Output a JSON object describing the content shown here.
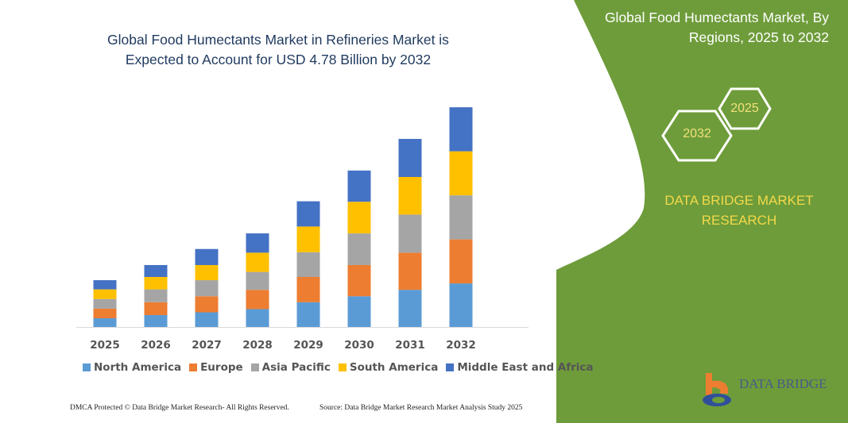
{
  "title": "Global Food Humectants Market in Refineries Market is Expected to Account for USD 4.78 Billion by 2032",
  "panel": {
    "title": "Global Food Humectants Market, By Regions, 2025 to 2032",
    "hex_start": "2025",
    "hex_end": "2032",
    "brand": "DATA BRIDGE MARKET RESEARCH",
    "logo_text": "DATA BRIDGE",
    "color": "#6e9c3a"
  },
  "footer": {
    "left": "DMCA Protected © Data Bridge Market Research-  All Rights Reserved.",
    "right": "Source: Data Bridge Market Research  Market Analysis Study 2025"
  },
  "chart_data": {
    "type": "bar",
    "stacked": true,
    "title": "Global Food Humectants Market in Refineries Market is Expected to Account for USD 4.78 Billion by 2032",
    "xlabel": "",
    "ylabel": "",
    "ylim": [
      0,
      5
    ],
    "grid": false,
    "y_axis_visible": false,
    "legend": "bottom",
    "categories": [
      "2025",
      "2026",
      "2027",
      "2028",
      "2029",
      "2030",
      "2031",
      "2032"
    ],
    "series": [
      {
        "name": "North America",
        "color": "#5b9bd5",
        "values": [
          0.19,
          0.26,
          0.32,
          0.39,
          0.54,
          0.67,
          0.81,
          0.95
        ]
      },
      {
        "name": "Europe",
        "color": "#ed7d31",
        "values": [
          0.21,
          0.28,
          0.35,
          0.42,
          0.55,
          0.68,
          0.81,
          0.96
        ]
      },
      {
        "name": "Asia Pacific",
        "color": "#a5a5a5",
        "values": [
          0.21,
          0.28,
          0.35,
          0.39,
          0.54,
          0.69,
          0.83,
          0.96
        ]
      },
      {
        "name": "South America",
        "color": "#ffc000",
        "values": [
          0.21,
          0.27,
          0.33,
          0.42,
          0.56,
          0.69,
          0.82,
          0.96
        ]
      },
      {
        "name": "Middle East and Africa",
        "color": "#4472c4",
        "values": [
          0.2,
          0.26,
          0.35,
          0.42,
          0.55,
          0.68,
          0.83,
          0.96
        ]
      }
    ]
  }
}
